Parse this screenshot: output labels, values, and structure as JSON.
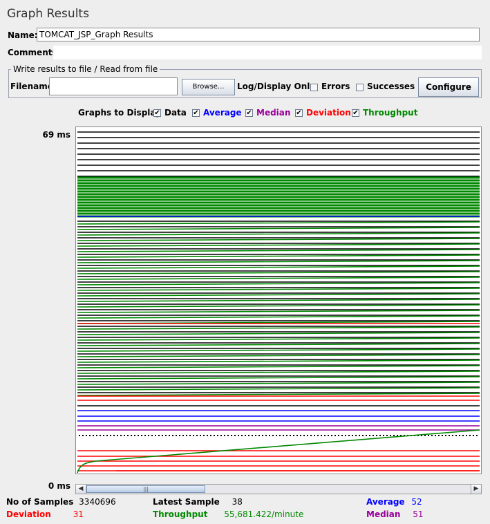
{
  "window": {
    "title": "Graph Results"
  },
  "name_field": {
    "label": "Name:",
    "value": "TOMCAT_JSP_Graph Results"
  },
  "comments_field": {
    "label": "Comments:",
    "value": ""
  },
  "file_panel": {
    "title": "Write results to file / Read from file",
    "filename_label": "Filename",
    "filename_value": "",
    "browse_label": "Browse...",
    "log_display_label": "Log/Display Only:",
    "errors_label": "Errors",
    "errors_checked": false,
    "successes_label": "Successes",
    "successes_checked": false,
    "configure_label": "Configure"
  },
  "graphs_to_display": {
    "label": "Graphs to Display",
    "options": [
      {
        "label": "Data",
        "checked": true,
        "color": "#000000"
      },
      {
        "label": "Average",
        "checked": true,
        "color": "#0000ff"
      },
      {
        "label": "Median",
        "checked": true,
        "color": "#990099"
      },
      {
        "label": "Deviation",
        "checked": true,
        "color": "#ff0000"
      },
      {
        "label": "Throughput",
        "checked": true,
        "color": "#008800"
      }
    ]
  },
  "chart_data": {
    "type": "line",
    "y_max_label": "69  ms",
    "y_min_label": "0  ms",
    "ylim": [
      0,
      69
    ],
    "series": [
      {
        "name": "Data",
        "color": "#000000"
      },
      {
        "name": "Average",
        "color": "#0000ff"
      },
      {
        "name": "Median",
        "color": "#990099"
      },
      {
        "name": "Deviation",
        "color": "#ff0000"
      },
      {
        "name": "Throughput",
        "color": "#008800"
      }
    ]
  },
  "stats": {
    "samples_label": "No of Samples",
    "samples_value": "3340696",
    "latest_label": "Latest Sample",
    "latest_value": "38",
    "average_label": "Average",
    "average_value": "52",
    "deviation_label": "Deviation",
    "deviation_value": "31",
    "throughput_label": "Throughput",
    "throughput_value": "55,681.422/minute",
    "median_label": "Median",
    "median_value": "51"
  },
  "scrollbar": {
    "left_icon": "arrow-left-icon",
    "right_icon": "arrow-right-icon",
    "thumb_grip": "grip-icon"
  }
}
